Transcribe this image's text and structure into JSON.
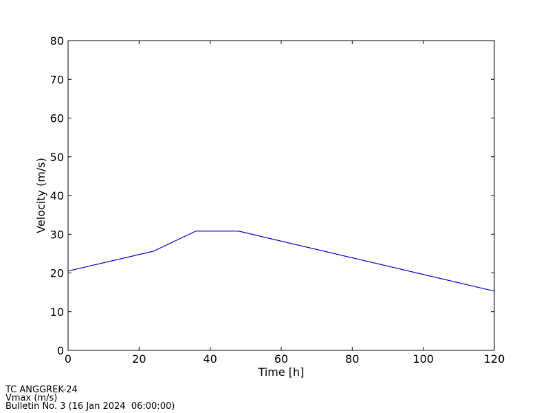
{
  "chart_data": {
    "type": "line",
    "xlabel": "Time [h]",
    "ylabel": "Velocity (m/s)",
    "x": [
      0,
      24,
      36,
      48,
      120
    ],
    "series": [
      {
        "name": "Vmax",
        "color": "#0000cc",
        "values": [
          20.5,
          25.6,
          30.8,
          30.8,
          15.3
        ]
      }
    ],
    "xlim": [
      0,
      120
    ],
    "xticks": [
      0,
      20,
      40,
      60,
      80,
      100,
      120
    ],
    "ylim": [
      0,
      80
    ],
    "yticks": [
      0,
      10,
      20,
      30,
      40,
      50,
      60,
      70,
      80
    ],
    "grid": false,
    "footer": [
      "TC ANGGREK-24",
      "Vmax (m/s)",
      "Bulletin No. 3 (16 Jan 2024  06:00:00)"
    ]
  }
}
